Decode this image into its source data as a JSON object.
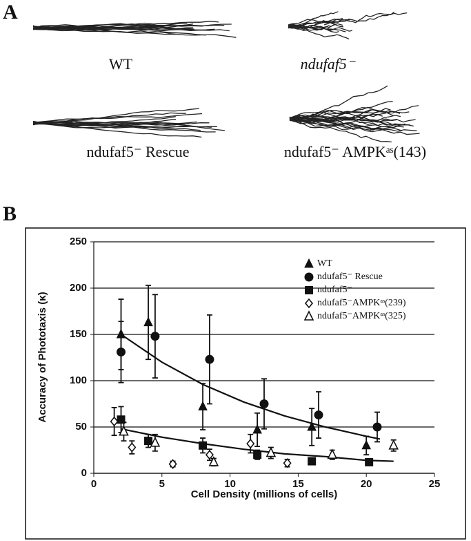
{
  "panel_a": {
    "label": "A",
    "conditions": [
      "WT",
      "ndufaf5⁻",
      "ndufaf5⁻ Rescue",
      "ndufaf5⁻ AMPKᵃˢ(143)"
    ]
  },
  "chart_data": {
    "type": "scatter",
    "panel_label": "B",
    "x_label": "Cell Density (millions of cells)",
    "y_label": "Accuracy of Phototaxis (κ)",
    "xlim": [
      0,
      25
    ],
    "xticks": [
      0,
      5,
      10,
      15,
      20,
      25
    ],
    "ylim": [
      0,
      250
    ],
    "yticks": [
      0,
      50,
      100,
      150,
      200,
      250
    ],
    "grid": true,
    "legend": "upper right",
    "series": [
      {
        "name": "WT",
        "color": "#111111",
        "marker": "triangle",
        "x": [
          2,
          4,
          8,
          12,
          16,
          20
        ],
        "values": [
          150,
          163,
          72,
          47,
          50,
          30
        ],
        "errors": [
          38,
          40,
          25,
          18,
          20,
          10
        ]
      },
      {
        "name": "ndufaf5⁻ Rescue",
        "color": "#111111",
        "marker": "circle",
        "x": [
          2,
          4.5,
          8.5,
          12.5,
          16.5,
          20.8
        ],
        "values": [
          131,
          148,
          123,
          75,
          63,
          50
        ],
        "errors": [
          33,
          45,
          48,
          27,
          25,
          16
        ]
      },
      {
        "name": "ndufaf5⁻",
        "color": "#111111",
        "marker": "square",
        "x": [
          2,
          4,
          8,
          12,
          16,
          20.2
        ],
        "values": [
          58,
          35,
          30,
          20,
          13,
          12
        ],
        "errors": [
          14,
          7,
          8,
          5,
          3,
          3
        ]
      },
      {
        "name": "ndufaf5⁻AMPKᵃˢ(239)",
        "color": "#111111",
        "marker": "diamond-open",
        "x": [
          1.5,
          2.8,
          5.8,
          8.5,
          11.5,
          14.2
        ],
        "values": [
          56,
          28,
          10,
          20,
          32,
          11
        ],
        "errors": [
          15,
          7,
          3,
          6,
          10,
          4
        ]
      },
      {
        "name": "ndufaf5⁻AMPKᵃˢ(325)",
        "color": "#111111",
        "marker": "triangle-open",
        "x": [
          2.2,
          4.5,
          8.8,
          13,
          17.5,
          22
        ],
        "values": [
          45,
          33,
          12,
          22,
          20,
          30
        ],
        "errors": [
          10,
          9,
          4,
          6,
          5,
          6
        ]
      }
    ],
    "fits": [
      {
        "x": [
          2,
          5,
          8,
          11,
          14,
          17,
          20,
          21
        ],
        "values": [
          150,
          120,
          96,
          77,
          62,
          50,
          40,
          37
        ]
      },
      {
        "x": [
          2,
          5,
          8,
          11,
          14,
          17,
          20,
          22
        ],
        "values": [
          48,
          39,
          32,
          26,
          21,
          18,
          14,
          13
        ]
      }
    ]
  }
}
